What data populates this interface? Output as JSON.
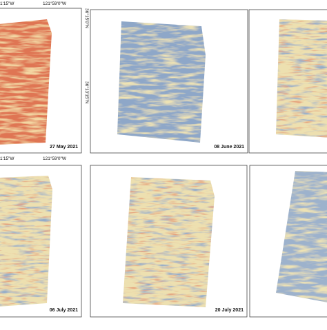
{
  "panels": [
    {
      "date": "27 May 2021",
      "top_left_coord": "1'15\"W",
      "top_right_coord": "121°59'0\"W",
      "right_coord_1": "36°15'0\"N",
      "right_coord_2": "36°13'15\"N"
    },
    {
      "date": "08 June 2021"
    },
    {
      "date": ""
    },
    {
      "date": "06 July 2021",
      "top_left_coord": "1'15\"W",
      "top_right_coord": "121°59'0\"W"
    },
    {
      "date": "20 July 2021"
    },
    {
      "date": ""
    }
  ]
}
